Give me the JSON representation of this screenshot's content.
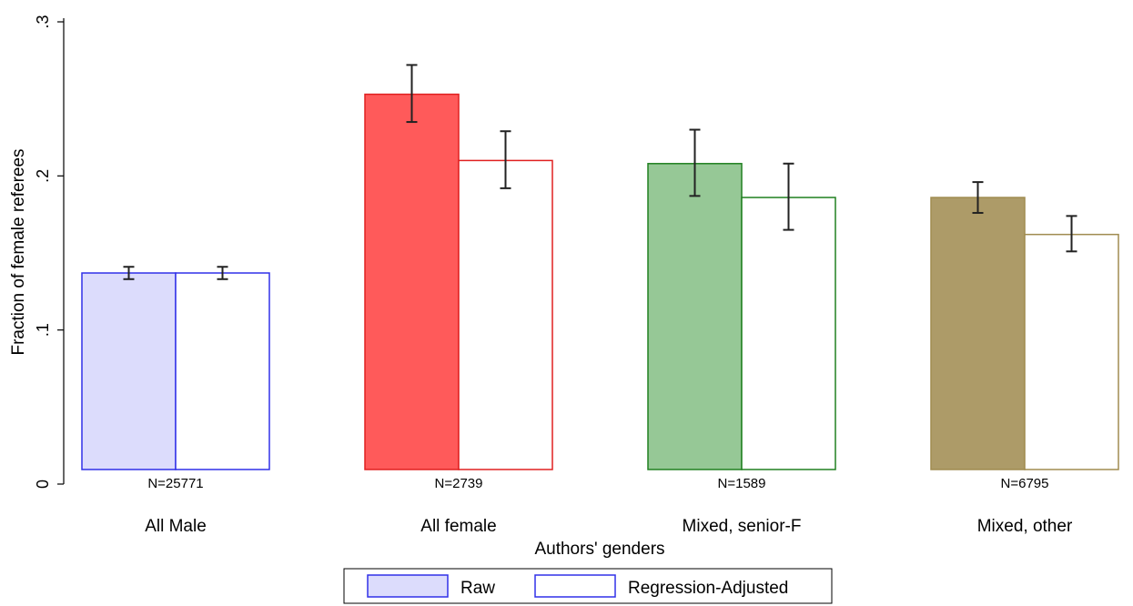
{
  "chart_data": {
    "type": "bar",
    "title": "",
    "xlabel": "Authors' genders",
    "ylabel": "Fraction of female referees",
    "ylim": [
      0,
      0.3
    ],
    "yticks": [
      0,
      0.1,
      0.2,
      0.3
    ],
    "ytick_labels": [
      "0",
      ".1",
      ".2",
      ".3"
    ],
    "grid": false,
    "legend_position": "bottom",
    "categories": [
      "All Male",
      "All female",
      "Mixed, senior-F",
      "Mixed, other"
    ],
    "sample_sizes": [
      "N=25771",
      "N=2739",
      "N=1589",
      "N=6795"
    ],
    "category_colors": {
      "fill": [
        "#dcdcfc",
        "#ff5a5a",
        "#96c896",
        "#ad9b68"
      ],
      "edge": [
        "#3030e8",
        "#e02020",
        "#208020",
        "#a08c50"
      ]
    },
    "series": [
      {
        "name": "Raw",
        "style": "filled",
        "values": [
          0.137,
          0.253,
          0.208,
          0.186
        ],
        "ci_low": [
          0.133,
          0.235,
          0.187,
          0.176
        ],
        "ci_high": [
          0.141,
          0.272,
          0.23,
          0.196
        ]
      },
      {
        "name": "Regression-Adjusted",
        "style": "outline",
        "values": [
          0.137,
          0.21,
          0.186,
          0.162
        ],
        "ci_low": [
          0.133,
          0.192,
          0.165,
          0.151
        ],
        "ci_high": [
          0.141,
          0.229,
          0.208,
          0.174
        ]
      }
    ],
    "legend": [
      {
        "label": "Raw",
        "fill": "#dcdcfc",
        "edge": "#3030e8"
      },
      {
        "label": "Regression-Adjusted",
        "fill": "#ffffff",
        "edge": "#3030e8"
      }
    ]
  }
}
